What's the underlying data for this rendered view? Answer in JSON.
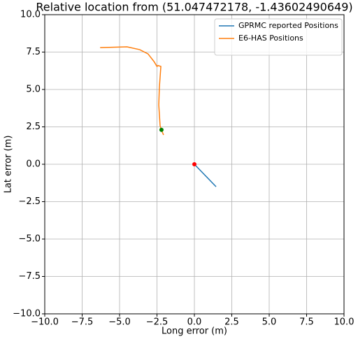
{
  "chart_data": {
    "type": "line",
    "title": "Relative location from (51.047472178, -1.43602490649)",
    "x_label": "Long error (m)",
    "y_label": "Lat error (m)",
    "xlim": [
      -10,
      10
    ],
    "ylim": [
      -10,
      10
    ],
    "xticks": [
      {
        "value": -10,
        "label": "−10.0"
      },
      {
        "value": -7.5,
        "label": "−7.5"
      },
      {
        "value": -5,
        "label": "−5.0"
      },
      {
        "value": -2.5,
        "label": "−2.5"
      },
      {
        "value": 0,
        "label": "0.0"
      },
      {
        "value": 2.5,
        "label": "2.5"
      },
      {
        "value": 5,
        "label": "5.0"
      },
      {
        "value": 7.5,
        "label": "7.5"
      },
      {
        "value": 10,
        "label": "10.0"
      }
    ],
    "yticks": [
      {
        "value": -10,
        "label": "−10.0"
      },
      {
        "value": -7.5,
        "label": "−7.5"
      },
      {
        "value": -5,
        "label": "−5.0"
      },
      {
        "value": -2.5,
        "label": "−2.5"
      },
      {
        "value": 0,
        "label": "0.0"
      },
      {
        "value": 2.5,
        "label": "2.5"
      },
      {
        "value": 5,
        "label": "5.0"
      },
      {
        "value": 7.5,
        "label": "7.5"
      },
      {
        "value": 10,
        "label": "10.0"
      }
    ],
    "grid": true,
    "legend": "upper-right",
    "series": [
      {
        "name": "GPRMC reported Positions",
        "color": "#1f77b4",
        "x": [
          0,
          1.45
        ],
        "values": [
          0,
          -1.5
        ]
      },
      {
        "name": "E6-HAS Positions",
        "color": "#ff7f0e",
        "x": [
          -6.3,
          -4.5,
          -3.65,
          -3.1,
          -2.7,
          -2.5,
          -2.43,
          -2.24,
          -2.29,
          -2.34,
          -2.38,
          -2.29,
          -2.2,
          -2.06
        ],
        "values": [
          7.8,
          7.85,
          7.66,
          7.38,
          6.87,
          6.54,
          6.6,
          6.54,
          5.84,
          5.14,
          3.97,
          2.57,
          2.29,
          1.96
        ]
      }
    ],
    "points": [
      {
        "x": 0,
        "y": 0,
        "color": "#ff0000"
      },
      {
        "x": -2.2,
        "y": 2.3,
        "color": "#008000"
      }
    ]
  }
}
